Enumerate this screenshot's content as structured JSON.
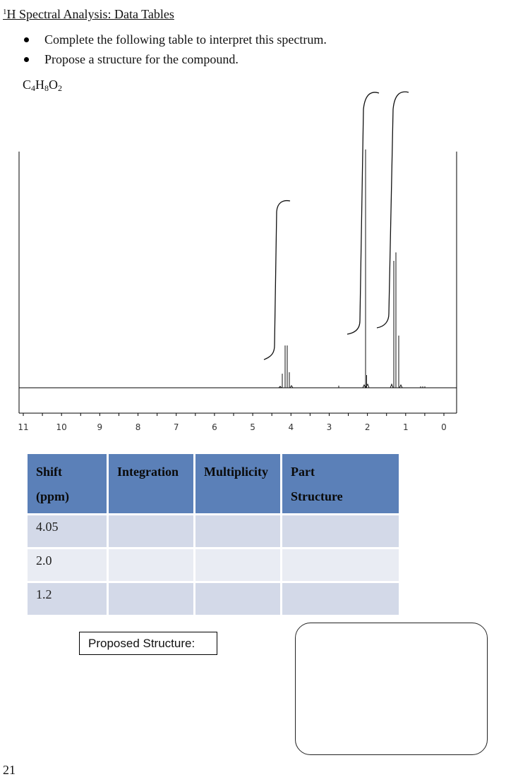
{
  "header": {
    "title_sup": "1",
    "title_main": "H Spectral Analysis:  Data Tables"
  },
  "instructions": [
    "Complete the following table to interpret this spectrum.",
    "Propose a structure for the compound."
  ],
  "formula": {
    "c": "C",
    "c_n": "4",
    "h": "H",
    "h_n": "8",
    "o": "O",
    "o_n": "2"
  },
  "chart_data": {
    "type": "line",
    "xlabel": "",
    "ylabel": "",
    "xlim": [
      11,
      0
    ],
    "x_ticks": [
      "11",
      "10",
      "9",
      "8",
      "7",
      "6",
      "5",
      "4",
      "3",
      "2",
      "1",
      "0"
    ],
    "peaks": [
      {
        "shift": 4.05,
        "multiplicity_lines": 4,
        "integration_step": 2
      },
      {
        "shift": 2.0,
        "multiplicity_lines": 1,
        "integration_step": 3
      },
      {
        "shift": 1.2,
        "multiplicity_lines": 3,
        "integration_step": 3
      }
    ]
  },
  "table": {
    "headers": [
      {
        "line1": "Shift",
        "line2": "(ppm)"
      },
      {
        "line1": "Integration",
        "line2": ""
      },
      {
        "line1": "Multiplicity",
        "line2": ""
      },
      {
        "line1": "Part",
        "line2": "Structure"
      }
    ],
    "rows": [
      {
        "shift": "4.05",
        "integration": "",
        "multiplicity": "",
        "part": ""
      },
      {
        "shift": "2.0",
        "integration": "",
        "multiplicity": "",
        "part": ""
      },
      {
        "shift": "1.2",
        "integration": "",
        "multiplicity": "",
        "part": ""
      }
    ]
  },
  "proposed_label": "Proposed Structure:",
  "page_number": "21"
}
